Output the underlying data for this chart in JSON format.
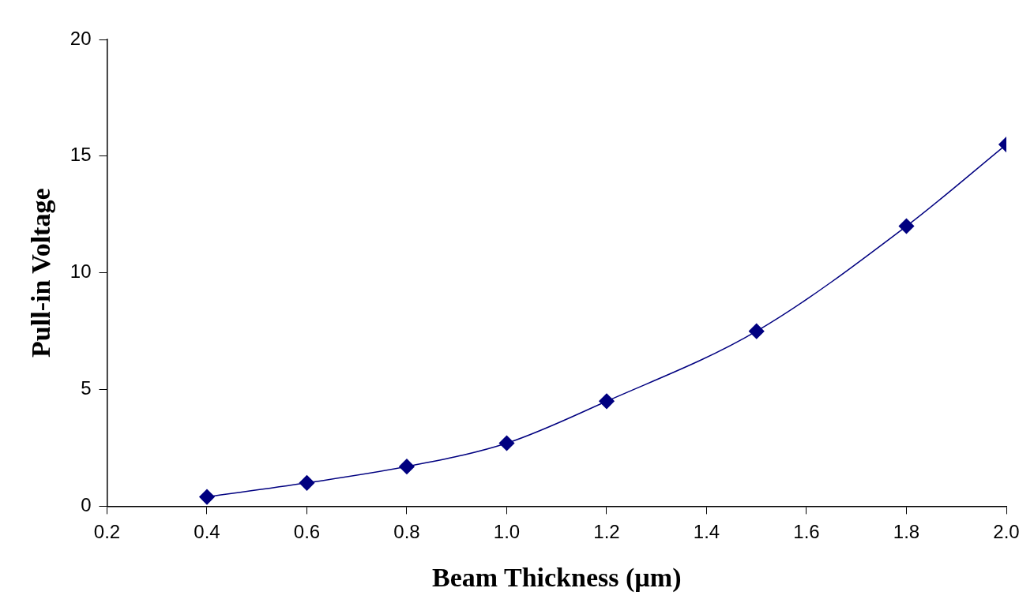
{
  "chart_data": {
    "type": "line",
    "xlabel": "Beam Thickness (µm)",
    "ylabel": "Pull-in Voltage",
    "x": [
      0.4,
      0.6,
      0.8,
      1.0,
      1.2,
      1.5,
      1.8,
      2.0
    ],
    "series": [
      {
        "color": "#000080",
        "values": [
          0.4,
          1.0,
          1.7,
          2.7,
          4.5,
          7.5,
          12.0,
          15.5
        ]
      }
    ],
    "xlim": [
      0.2,
      2.0
    ],
    "xticks": [
      0.2,
      0.4,
      0.6,
      0.8,
      {
        "value": 1.0,
        "label": "1.0"
      },
      1.2,
      1.4,
      1.6,
      1.8,
      {
        "value": 2.0,
        "label": "2.0"
      }
    ],
    "ylim": [
      0,
      20
    ],
    "yticks": [
      0,
      5,
      10,
      15,
      20
    ],
    "grid": false,
    "legend": false,
    "marker": "diamond",
    "line_style": "solid"
  }
}
